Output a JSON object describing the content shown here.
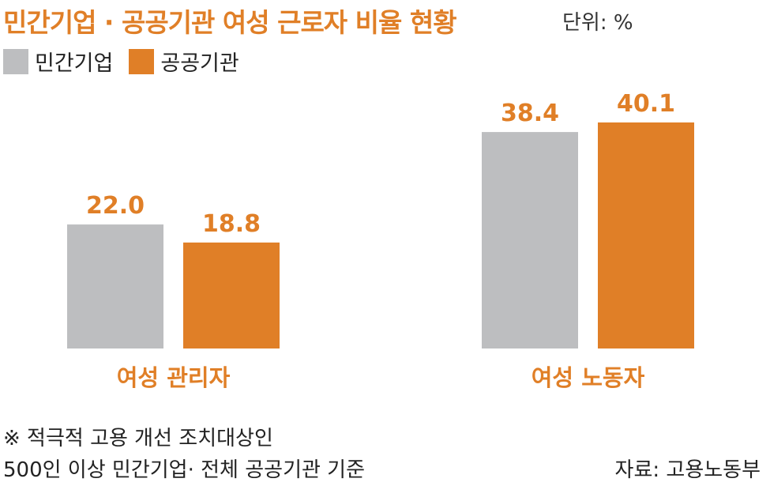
{
  "title": "민간기업 · 공공기관 여성 근로자 비율 현황",
  "unit_label": "단위: %",
  "colors": {
    "private": "#bdbec0",
    "public": "#e07f27",
    "accent_text": "#e07f27"
  },
  "chart_data": {
    "type": "bar",
    "title": "민간기업 · 공공기관 여성 근로자 비율 현황",
    "categories": [
      "여성 관리자",
      "여성 노동자"
    ],
    "series": [
      {
        "name": "민간기업",
        "values": [
          22.0,
          38.4
        ]
      },
      {
        "name": "공공기관",
        "values": [
          18.8,
          40.1
        ]
      }
    ],
    "ylim": [
      0,
      45
    ],
    "grid": false,
    "legend": "top-left",
    "value_labels": [
      [
        "22.0",
        "18.8"
      ],
      [
        "38.4",
        "40.1"
      ]
    ]
  },
  "footnote": {
    "line1": "※ 적극적 고용 개선 조치대상인",
    "line2": "500인 이상 민간기업· 전체 공공기관 기준"
  },
  "source": "자료: 고용노동부"
}
